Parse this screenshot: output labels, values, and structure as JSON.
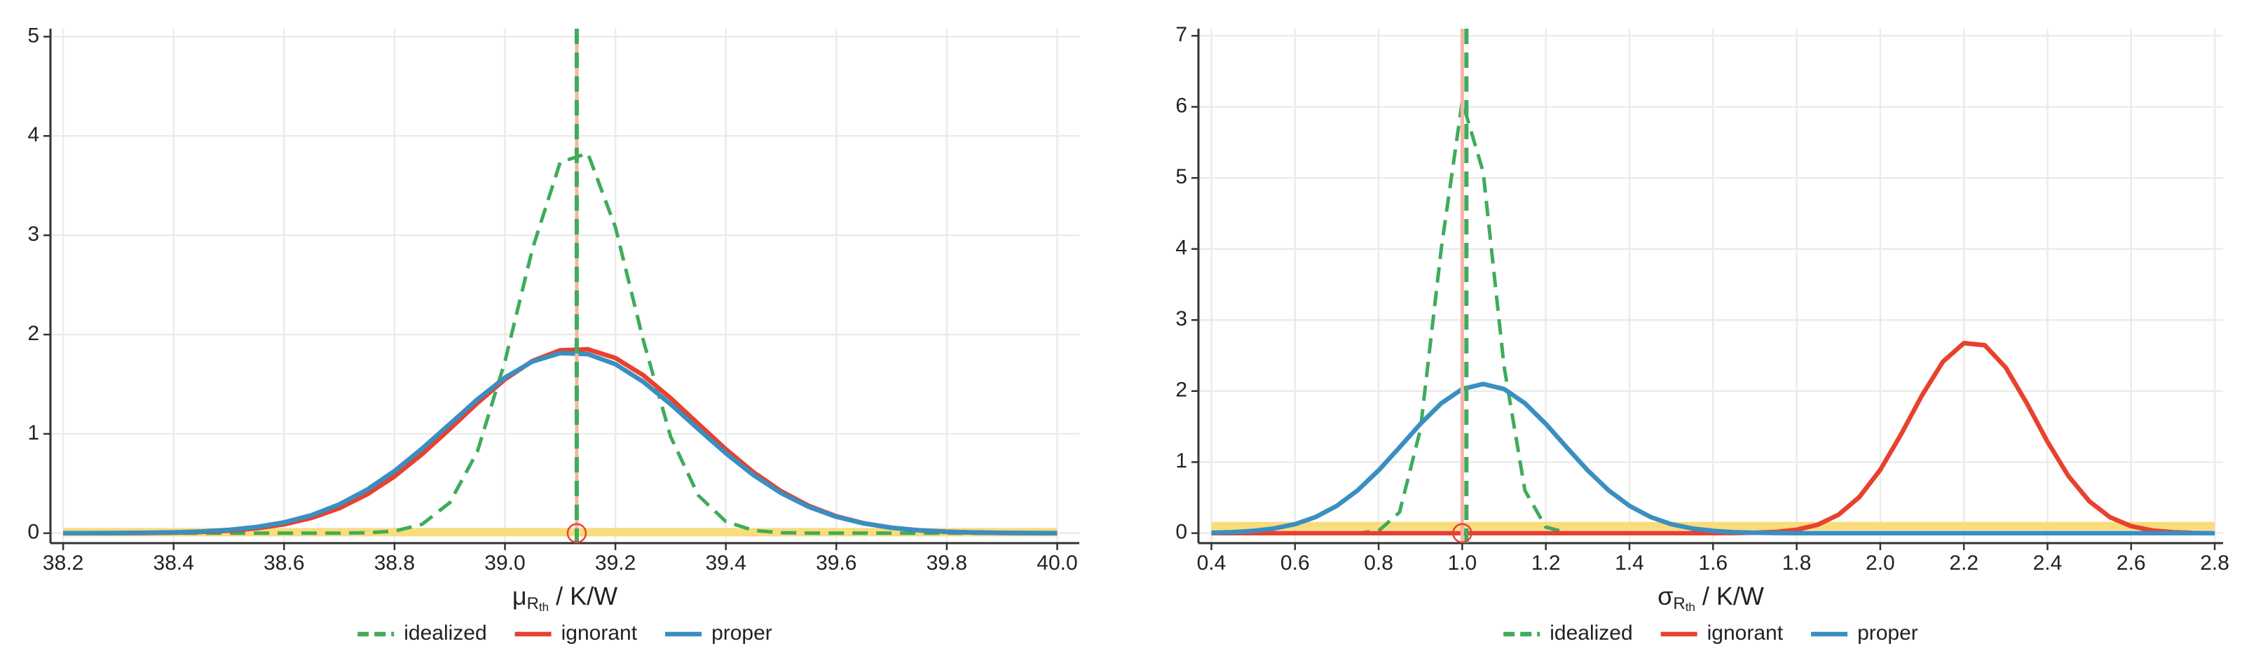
{
  "chart_data": [
    {
      "type": "line",
      "xlabel": {
        "symbol": "μ",
        "sub": "R",
        "subsub": "th",
        "unit": "/ K/W"
      },
      "x": [
        38.2,
        38.25,
        38.3,
        38.35,
        38.4,
        38.45,
        38.5,
        38.55,
        38.6,
        38.65,
        38.7,
        38.75,
        38.8,
        38.85,
        38.9,
        38.95,
        39.0,
        39.05,
        39.1,
        39.15,
        39.2,
        39.25,
        39.3,
        39.35,
        39.4,
        39.45,
        39.5,
        39.55,
        39.6,
        39.65,
        39.7,
        39.75,
        39.8,
        39.85,
        39.9,
        39.95,
        40.0
      ],
      "series": [
        {
          "name": "idealized",
          "color": "#3fab5c",
          "linestyle": "dashed",
          "values": [
            0,
            0,
            0,
            0,
            0,
            0,
            0,
            0,
            0,
            0,
            0.0005,
            0.004,
            0.021,
            0.09,
            0.307,
            0.821,
            1.73,
            2.867,
            3.735,
            3.826,
            3.081,
            1.952,
            0.972,
            0.381,
            0.117,
            0.028,
            0.005,
            0.0008,
            0,
            0,
            0,
            0,
            0,
            0,
            0,
            0,
            0
          ]
        },
        {
          "name": "ignorant",
          "color": "#e8412e",
          "linestyle": "solid",
          "values": [
            0.0002,
            0.0004,
            0.0011,
            0.0026,
            0.0058,
            0.0125,
            0.025,
            0.049,
            0.089,
            0.154,
            0.251,
            0.39,
            0.572,
            0.796,
            1.049,
            1.31,
            1.549,
            1.735,
            1.842,
            1.852,
            1.764,
            1.592,
            1.36,
            1.102,
            0.845,
            0.614,
            0.423,
            0.276,
            0.17,
            0.1,
            0.055,
            0.029,
            0.014,
            0.007,
            0.003,
            0.0013,
            0.0005
          ]
        },
        {
          "name": "proper",
          "color": "#3a8ec1",
          "linestyle": "solid",
          "values": [
            0.0003,
            0.0007,
            0.0017,
            0.0038,
            0.0082,
            0.017,
            0.033,
            0.062,
            0.109,
            0.182,
            0.29,
            0.437,
            0.626,
            0.852,
            1.099,
            1.347,
            1.566,
            1.729,
            1.813,
            1.803,
            1.702,
            1.526,
            1.299,
            1.049,
            0.804,
            0.585,
            0.404,
            0.265,
            0.165,
            0.098,
            0.055,
            0.029,
            0.015,
            0.007,
            0.003,
            0.0014,
            0.0006
          ]
        }
      ],
      "hlines": [
        {
          "y": 0.01,
          "color": "#f9dc7c"
        }
      ],
      "vlines": [
        {
          "x": 39.13,
          "color": "#f5b4a6",
          "linestyle": "solid"
        },
        {
          "x": 39.13,
          "color": "#3fab5c",
          "linestyle": "dashed"
        }
      ],
      "points": [
        {
          "x": 39.13,
          "y": 0,
          "color": "#e8412e"
        }
      ],
      "xlim": [
        38.177,
        40.04
      ],
      "ylim": [
        -0.1,
        5.08
      ],
      "xticks": [
        38.2,
        38.4,
        38.6,
        38.8,
        {
          "value": 39,
          "label": "39.0"
        },
        39.2,
        39.4,
        39.6,
        39.8,
        {
          "value": 40,
          "label": "40.0"
        }
      ],
      "yticks": [
        0,
        1,
        2,
        3,
        4,
        5
      ],
      "grid": true
    },
    {
      "type": "line",
      "xlabel": {
        "symbol": "σ",
        "sub": "R",
        "subsub": "th",
        "unit": "/ K/W"
      },
      "x": [
        0.4,
        0.45,
        0.5,
        0.55,
        0.6,
        0.65,
        0.7,
        0.75,
        0.8,
        0.85,
        0.9,
        0.95,
        1.0,
        1.05,
        1.1,
        1.15,
        1.2,
        1.25,
        1.3,
        1.35,
        1.4,
        1.45,
        1.5,
        1.55,
        1.6,
        1.65,
        1.7,
        1.75,
        1.8,
        1.85,
        1.9,
        1.95,
        2.0,
        2.05,
        2.1,
        2.15,
        2.2,
        2.25,
        2.3,
        2.35,
        2.4,
        2.45,
        2.5,
        2.55,
        2.6,
        2.65,
        2.7,
        2.75,
        2.8
      ],
      "series": [
        {
          "name": "idealized",
          "color": "#3fab5c",
          "linestyle": "dashed",
          "values": [
            0,
            0,
            0,
            0,
            0,
            0,
            0,
            0.002,
            0.033,
            0.294,
            1.461,
            4.01,
            6.077,
            5.086,
            2.35,
            0.6,
            0.085,
            0.007,
            0,
            0,
            0,
            0,
            0,
            0,
            0,
            0,
            0,
            0,
            0,
            0,
            0,
            0,
            0,
            0,
            0,
            0,
            0,
            0,
            0,
            0,
            0,
            0,
            0,
            0,
            0,
            0,
            0,
            0,
            0
          ]
        },
        {
          "name": "ignorant",
          "color": "#e8412e",
          "linestyle": "solid",
          "values": [
            0,
            0,
            0,
            0,
            0,
            0,
            0,
            0,
            0,
            0,
            0,
            0,
            0,
            0,
            0,
            0,
            0,
            0,
            0,
            0,
            0,
            0,
            0,
            0,
            0,
            0.002,
            0.006,
            0.017,
            0.048,
            0.118,
            0.259,
            0.509,
            0.892,
            1.394,
            1.942,
            2.414,
            2.675,
            2.645,
            2.332,
            1.834,
            1.287,
            0.805,
            0.449,
            0.223,
            0.099,
            0.039,
            0.014,
            0.004,
            0.001
          ]
        },
        {
          "name": "proper",
          "color": "#3a8ec1",
          "linestyle": "solid",
          "values": [
            0.006,
            0.014,
            0.032,
            0.066,
            0.127,
            0.229,
            0.385,
            0.604,
            0.884,
            1.207,
            1.538,
            1.828,
            2.029,
            2.1,
            2.029,
            1.828,
            1.538,
            1.207,
            0.884,
            0.604,
            0.385,
            0.229,
            0.127,
            0.066,
            0.032,
            0.014,
            0.006,
            0.002,
            0.001,
            0,
            0,
            0,
            0,
            0,
            0,
            0,
            0,
            0,
            0,
            0,
            0,
            0,
            0,
            0,
            0,
            0,
            0,
            0,
            0
          ]
        }
      ],
      "hlines": [
        {
          "y": 0.1,
          "color": "#f9dc7c"
        }
      ],
      "vlines": [
        {
          "x": 1.0,
          "color": "#f5b4a6",
          "linestyle": "solid"
        },
        {
          "x": 1.01,
          "color": "#3fab5c",
          "linestyle": "dashed"
        }
      ],
      "points": [
        {
          "x": 1.0,
          "y": 0,
          "color": "#e8412e"
        }
      ],
      "xlim": [
        0.369,
        2.82
      ],
      "ylim": [
        -0.14,
        7.1
      ],
      "xticks": [
        0.4,
        0.6,
        0.8,
        {
          "value": 1,
          "label": "1.0"
        },
        1.2,
        1.4,
        1.6,
        1.8,
        {
          "value": 2,
          "label": "2.0"
        },
        2.2,
        2.4,
        2.6,
        2.8
      ],
      "yticks": [
        0,
        1,
        2,
        3,
        4,
        5,
        6,
        7
      ],
      "grid": true
    }
  ]
}
